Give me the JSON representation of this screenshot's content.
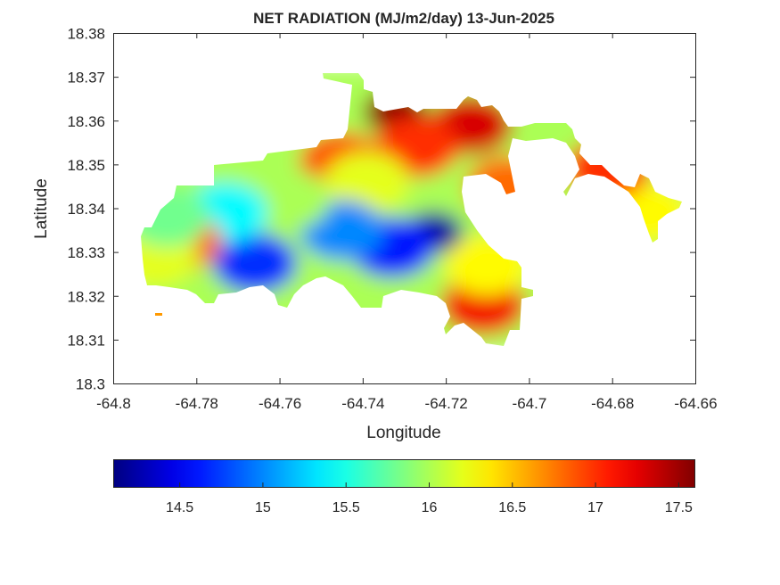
{
  "chart_data": {
    "type": "heatmap",
    "title": "NET RADIATION (MJ/m2/day) 13-Jun-2025",
    "xlabel": "Longitude",
    "ylabel": "Latitude",
    "xlim": [
      -64.8,
      -64.66
    ],
    "ylim": [
      18.3,
      18.38
    ],
    "xticks": [
      "-64.8",
      "-64.78",
      "-64.76",
      "-64.74",
      "-64.72",
      "-64.7",
      "-64.68",
      "-64.66"
    ],
    "yticks": [
      "18.38",
      "18.37",
      "18.36",
      "18.35",
      "18.34",
      "18.33",
      "18.32",
      "18.31",
      "18.3"
    ],
    "grid": false,
    "colormap": "jet",
    "colorbar": {
      "location": "below",
      "min": 14.1,
      "max": 17.6,
      "ticks": [
        "14.5",
        "15",
        "15.5",
        "16",
        "16.5",
        "17",
        "17.5"
      ]
    },
    "field_samples": [
      {
        "lon": -64.732,
        "lat": 18.362,
        "value": 17.55
      },
      {
        "lon": -64.714,
        "lat": 18.359,
        "value": 17.3
      },
      {
        "lon": -64.727,
        "lat": 18.354,
        "value": 17.0
      },
      {
        "lon": -64.745,
        "lat": 18.3505,
        "value": 16.9
      },
      {
        "lon": -64.739,
        "lat": 18.346,
        "value": 16.2
      },
      {
        "lon": -64.723,
        "lat": 18.3345,
        "value": 14.2
      },
      {
        "lon": -64.733,
        "lat": 18.331,
        "value": 14.6
      },
      {
        "lon": -64.745,
        "lat": 18.335,
        "value": 15.0
      },
      {
        "lon": -64.758,
        "lat": 18.342,
        "value": 16.0
      },
      {
        "lon": -64.766,
        "lat": 18.3275,
        "value": 14.7
      },
      {
        "lon": -64.773,
        "lat": 18.339,
        "value": 15.4
      },
      {
        "lon": -64.784,
        "lat": 18.3325,
        "value": 16.8
      },
      {
        "lon": -64.79,
        "lat": 18.329,
        "value": 16.2
      },
      {
        "lon": -64.787,
        "lat": 18.338,
        "value": 15.8
      },
      {
        "lon": -64.711,
        "lat": 18.318,
        "value": 17.2
      },
      {
        "lon": -64.71,
        "lat": 18.327,
        "value": 16.3
      },
      {
        "lon": -64.705,
        "lat": 18.345,
        "value": 16.8
      },
      {
        "lon": -64.672,
        "lat": 18.339,
        "value": 16.3
      },
      {
        "lon": -64.681,
        "lat": 18.349,
        "value": 17.0
      }
    ]
  }
}
